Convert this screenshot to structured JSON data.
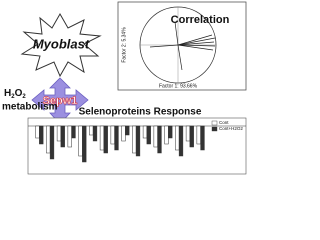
{
  "myoblast": "Myoblast",
  "metabolism": {
    "h": "H",
    "sub1": "2",
    "o": "O",
    "sub2": "2",
    "word": "metabolism"
  },
  "center_label": "Sepw1",
  "correlation": {
    "title": "Correlation",
    "x_label": "Factor 1: 93.66%",
    "y_label": "Factor 2: 5.34%"
  },
  "response": {
    "title": "Selenoproteins Response",
    "legend": [
      "Cont",
      "Cont+H2O2"
    ],
    "series": [
      {
        "name": "Cont",
        "color": "#ffffff",
        "values": [
          -0.4,
          -0.9,
          -0.5,
          -0.7,
          -1.0,
          -0.3,
          -0.8,
          -0.6,
          -0.5,
          -0.9,
          -0.4,
          -0.7,
          -0.6,
          -0.8,
          -0.5,
          -0.6
        ]
      },
      {
        "name": "Cont+H2O2",
        "color": "#333333",
        "values": [
          -0.6,
          -1.1,
          -0.7,
          -0.4,
          -1.2,
          -0.5,
          -0.9,
          -0.8,
          -0.3,
          -1.0,
          -0.6,
          -0.9,
          -0.4,
          -1.0,
          -0.7,
          -0.8
        ]
      }
    ]
  }
}
